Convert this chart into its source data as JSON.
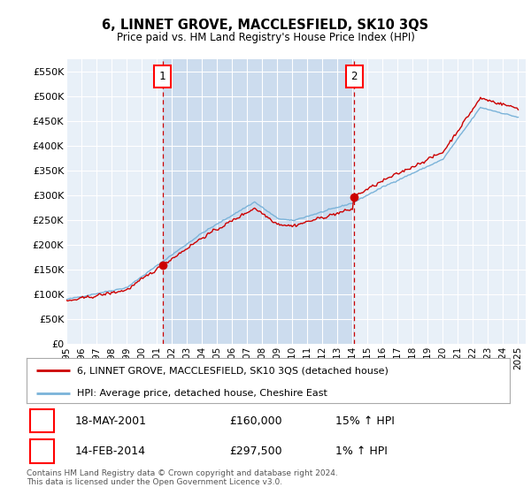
{
  "title": "6, LINNET GROVE, MACCLESFIELD, SK10 3QS",
  "subtitle": "Price paid vs. HM Land Registry's House Price Index (HPI)",
  "bg_color": "#e8f0f8",
  "shade_color": "#ccdcee",
  "hpi_color": "#7ab3d9",
  "price_color": "#cc0000",
  "grid_color": "#ffffff",
  "ylim": [
    0,
    575000
  ],
  "yticks": [
    0,
    50000,
    100000,
    150000,
    200000,
    250000,
    300000,
    350000,
    400000,
    450000,
    500000,
    550000
  ],
  "ytick_labels": [
    "£0",
    "£50K",
    "£100K",
    "£150K",
    "£200K",
    "£250K",
    "£300K",
    "£350K",
    "£400K",
    "£450K",
    "£500K",
    "£550K"
  ],
  "year_start": 1995,
  "year_end": 2025,
  "sale1_year": 2001.38,
  "sale1_price": 160000,
  "sale2_year": 2014.12,
  "sale2_price": 297500,
  "legend_line1": "6, LINNET GROVE, MACCLESFIELD, SK10 3QS (detached house)",
  "legend_line2": "HPI: Average price, detached house, Cheshire East",
  "table_row1_num": "1",
  "table_row1_date": "18-MAY-2001",
  "table_row1_price": "£160,000",
  "table_row1_hpi": "15% ↑ HPI",
  "table_row2_num": "2",
  "table_row2_date": "14-FEB-2014",
  "table_row2_price": "£297,500",
  "table_row2_hpi": "1% ↑ HPI",
  "footnote": "Contains HM Land Registry data © Crown copyright and database right 2024.\nThis data is licensed under the Open Government Licence v3.0."
}
